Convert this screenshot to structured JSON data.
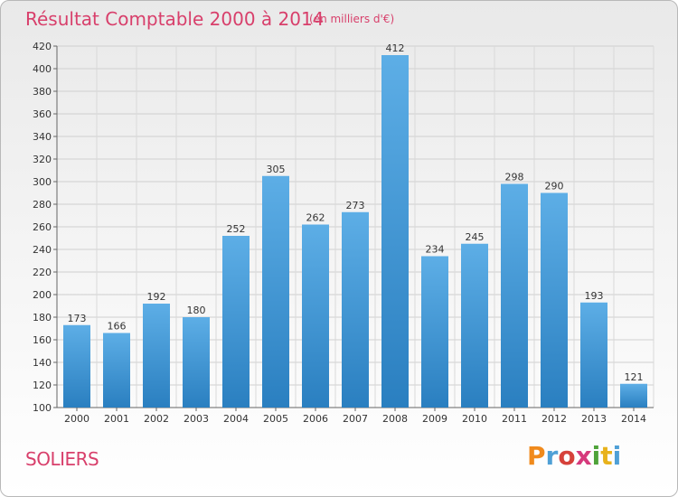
{
  "chart_data": {
    "type": "bar",
    "title": "Résultat Comptable 2000 à 2014",
    "subtitle": "(en milliers d'€)",
    "categories": [
      "2000",
      "2001",
      "2002",
      "2003",
      "2004",
      "2005",
      "2006",
      "2007",
      "2008",
      "2009",
      "2010",
      "2011",
      "2012",
      "2013",
      "2014"
    ],
    "values": [
      173,
      166,
      192,
      180,
      252,
      305,
      262,
      273,
      412,
      234,
      245,
      298,
      290,
      193,
      121
    ],
    "ylim": [
      100,
      420
    ],
    "yticks": [
      100,
      120,
      140,
      160,
      180,
      200,
      220,
      240,
      260,
      280,
      300,
      320,
      340,
      360,
      380,
      400,
      420
    ],
    "xlabel": "",
    "ylabel": "",
    "grid": true,
    "colors": {
      "bar_light": "#5daee6",
      "bar_dark": "#2a7fc0"
    }
  },
  "footer": {
    "city": "SOLIERS",
    "logo_letters": [
      "P",
      "r",
      "o",
      "x",
      "i",
      "t",
      "i"
    ]
  }
}
